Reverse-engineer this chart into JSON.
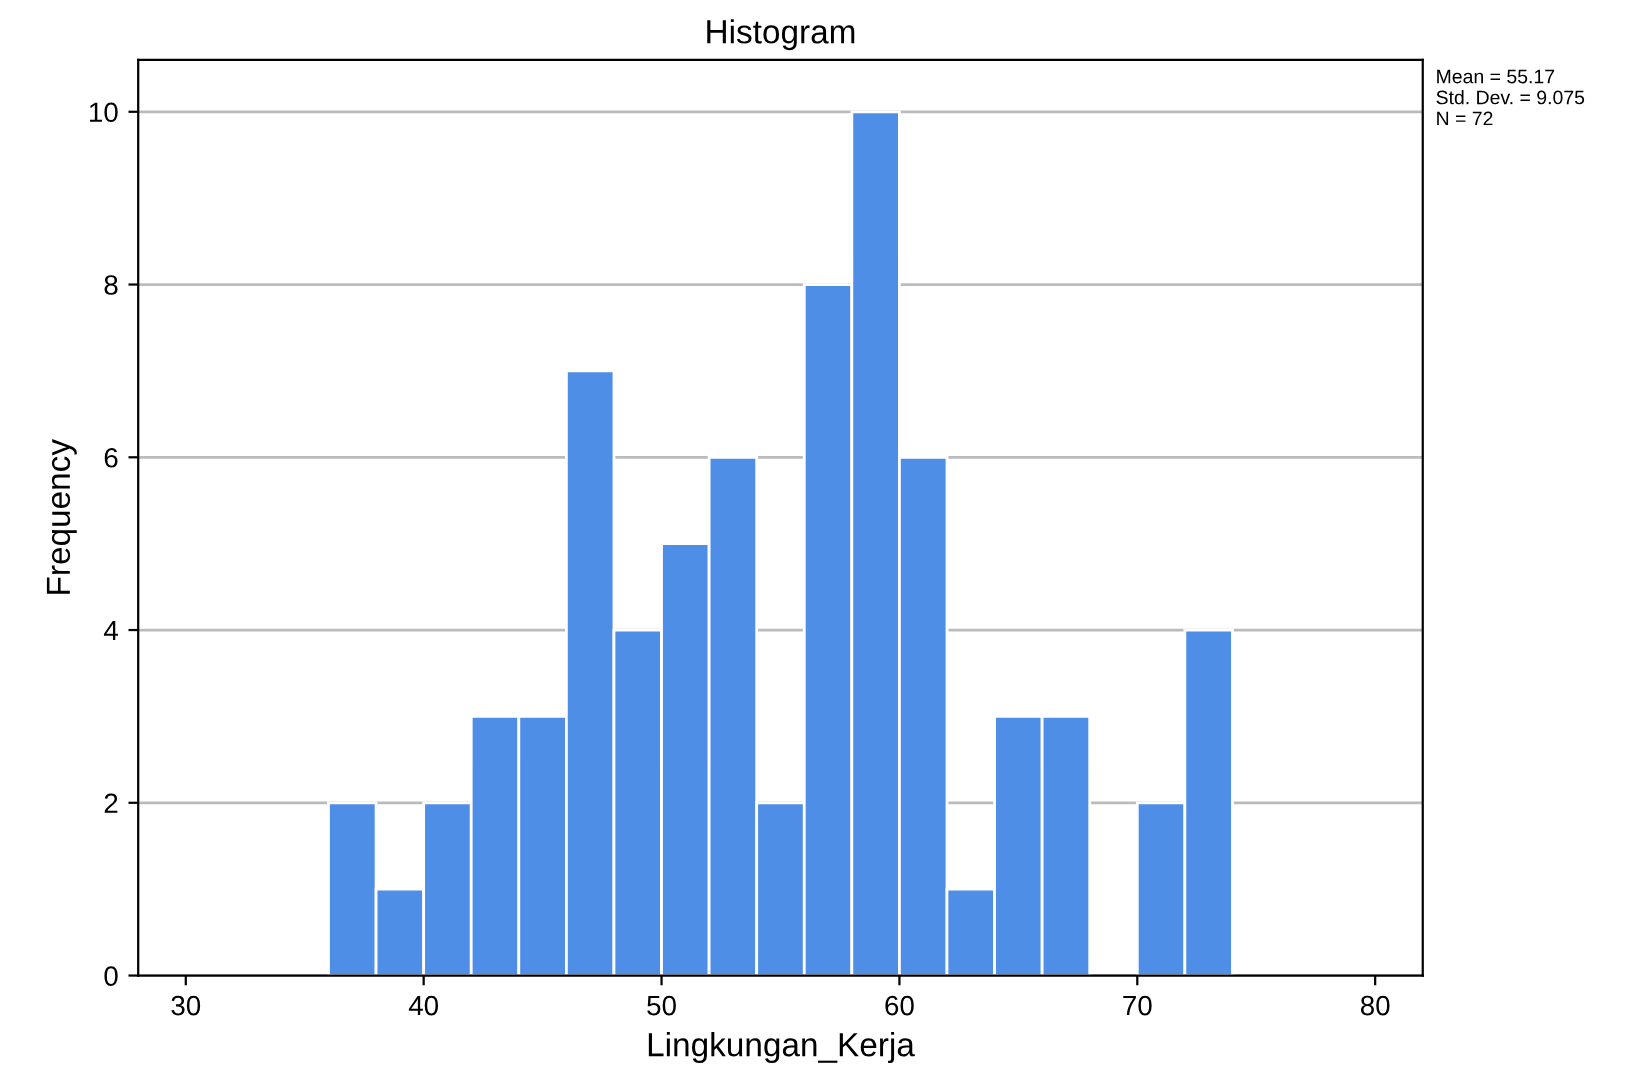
{
  "chart_data": {
    "type": "histogram",
    "title": "Histogram",
    "xlabel": "Lingkungan_Kerja",
    "ylabel": "Frequency",
    "bins": [
      36,
      38,
      40,
      42,
      44,
      46,
      48,
      50,
      52,
      54,
      56,
      58,
      60,
      62,
      64,
      66,
      68,
      70,
      72,
      74
    ],
    "values": [
      2,
      1,
      2,
      3,
      3,
      7,
      4,
      5,
      6,
      2,
      8,
      10,
      6,
      1,
      3,
      3,
      0,
      2,
      4
    ],
    "color": "#4f8ee6",
    "xlim": [
      28,
      82
    ],
    "xticks": [
      30,
      40,
      50,
      60,
      70,
      80
    ],
    "ylim": [
      0,
      10.6
    ],
    "yticks": [
      0,
      2,
      4,
      6,
      8,
      10
    ],
    "grid": "y",
    "annotations": [
      "Mean = 55.17\nStd. Dev. = 9.075\nN = 72"
    ]
  }
}
